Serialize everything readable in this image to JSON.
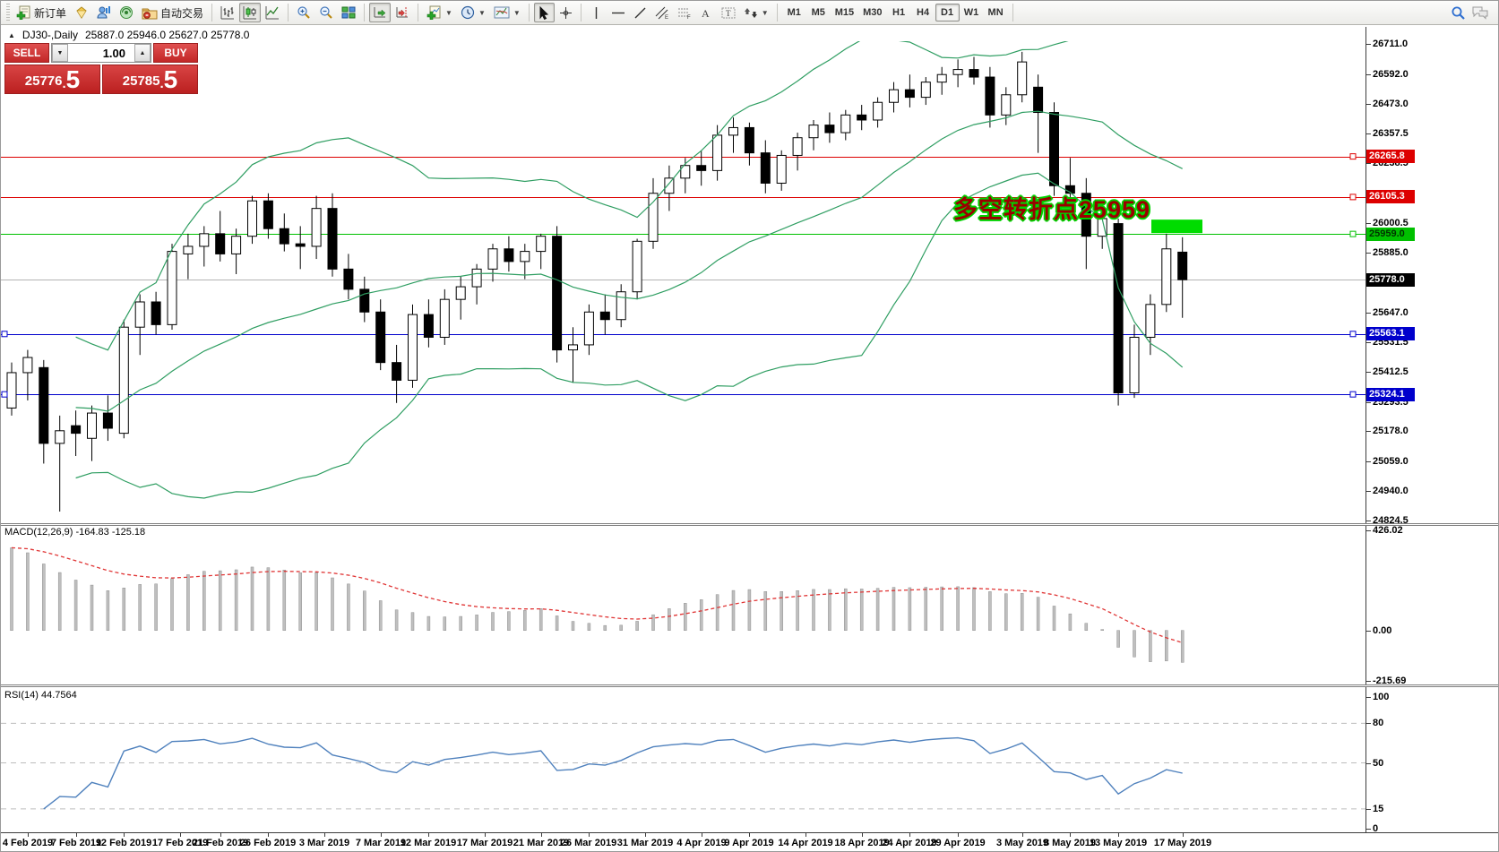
{
  "toolbar": {
    "new_order_label": "新订单",
    "auto_trading_label": "自动交易",
    "timeframes": [
      "M1",
      "M5",
      "M15",
      "M30",
      "H1",
      "H4",
      "D1",
      "W1",
      "MN"
    ],
    "active_timeframe": "D1"
  },
  "chart": {
    "collapse_marker": "▲",
    "title_symbol": "DJ30-,Daily",
    "title_ohlc": "25887.0 25946.0 25627.0 25778.0"
  },
  "trade_panel": {
    "sell_label": "SELL",
    "buy_label": "BUY",
    "volume": "1.00",
    "sell_price_main": "25776",
    "sell_price_frac": "5",
    "buy_price_main": "25785",
    "buy_price_frac": "5"
  },
  "annotation": {
    "text": "多空转折点25959"
  },
  "indicator_labels": {
    "macd": "MACD(12,26,9) -164.83 -125.18",
    "rsi": "RSI(14) 44.7564"
  },
  "colors": {
    "level_red": "#dd0000",
    "level_blue": "#0000cc",
    "level_green": "#00c000",
    "current_line": "#b4b4b4",
    "current_badge": "#000000",
    "bollinger": "#2f9e62",
    "macd_hist": "#bfbfbf",
    "macd_signal": "#e03535",
    "rsi_line": "#4f81bd",
    "highlight": "#00dc00",
    "sell_buy_red": "#c22727"
  },
  "chart_data": {
    "type": "candlestick",
    "symbol": "DJ30-",
    "period": "Daily",
    "last_ohlc": {
      "open": 25887.0,
      "high": 25946.0,
      "low": 25627.0,
      "close": 25778.0
    },
    "ylim": [
      24814,
      26722
    ],
    "y_ticks": [
      "26711.0",
      "26592.0",
      "26473.0",
      "26357.5",
      "26238.5",
      "26000.5",
      "25885.0",
      "25647.0",
      "25531.5",
      "25412.5",
      "25293.5",
      "25178.0",
      "25059.0",
      "24940.0",
      "24824.5"
    ],
    "levels": [
      {
        "price": 26265.8,
        "label": "26265.8",
        "color": "#dd0000",
        "text": "#ffffff"
      },
      {
        "price": 26105.3,
        "label": "26105.3",
        "color": "#dd0000",
        "text": "#ffffff"
      },
      {
        "price": 25959.0,
        "label": "25959.0",
        "color": "#00c000",
        "text": "#003300"
      },
      {
        "price": 25563.1,
        "label": "25563.1",
        "color": "#0000cc",
        "text": "#ffffff"
      },
      {
        "price": 25324.1,
        "label": "25324.1",
        "color": "#0000cc",
        "text": "#ffffff"
      }
    ],
    "current_price": {
      "price": 25778.0,
      "label": "25778.0"
    },
    "highlight_rect": {
      "price": 25959.0,
      "width": 57,
      "height": 15
    },
    "bollinger": {
      "period": 20,
      "deviation": 2
    },
    "ohlc": [
      [
        25270,
        25450,
        25240,
        25410
      ],
      [
        25410,
        25500,
        25300,
        25470
      ],
      [
        25430,
        25460,
        25050,
        25130
      ],
      [
        25130,
        25240,
        24860,
        25180
      ],
      [
        25200,
        25260,
        25080,
        25170
      ],
      [
        25150,
        25280,
        25060,
        25250
      ],
      [
        25250,
        25320,
        25140,
        25190
      ],
      [
        25170,
        25620,
        25150,
        25590
      ],
      [
        25590,
        25720,
        25480,
        25690
      ],
      [
        25690,
        25730,
        25560,
        25600
      ],
      [
        25600,
        25920,
        25580,
        25890
      ],
      [
        25880,
        25960,
        25780,
        25910
      ],
      [
        25910,
        25990,
        25830,
        25960
      ],
      [
        25960,
        26050,
        25850,
        25880
      ],
      [
        25880,
        25980,
        25800,
        25950
      ],
      [
        25950,
        26110,
        25920,
        26090
      ],
      [
        26090,
        26120,
        25940,
        25980
      ],
      [
        25980,
        26040,
        25890,
        25920
      ],
      [
        25920,
        25990,
        25820,
        25910
      ],
      [
        25910,
        26110,
        25860,
        26060
      ],
      [
        26060,
        26120,
        25790,
        25820
      ],
      [
        25820,
        25880,
        25700,
        25740
      ],
      [
        25740,
        25790,
        25610,
        25650
      ],
      [
        25650,
        25700,
        25420,
        25450
      ],
      [
        25450,
        25520,
        25290,
        25380
      ],
      [
        25380,
        25680,
        25350,
        25640
      ],
      [
        25640,
        25700,
        25510,
        25550
      ],
      [
        25550,
        25740,
        25520,
        25700
      ],
      [
        25700,
        25790,
        25620,
        25750
      ],
      [
        25750,
        25840,
        25680,
        25820
      ],
      [
        25820,
        25920,
        25770,
        25900
      ],
      [
        25900,
        25950,
        25810,
        25850
      ],
      [
        25850,
        25920,
        25780,
        25890
      ],
      [
        25890,
        25960,
        25820,
        25950
      ],
      [
        25950,
        25990,
        25450,
        25500
      ],
      [
        25500,
        25590,
        25370,
        25520
      ],
      [
        25520,
        25680,
        25480,
        25650
      ],
      [
        25650,
        25720,
        25560,
        25620
      ],
      [
        25620,
        25760,
        25590,
        25730
      ],
      [
        25730,
        25940,
        25700,
        25930
      ],
      [
        25930,
        26180,
        25900,
        26120
      ],
      [
        26120,
        26230,
        26050,
        26180
      ],
      [
        26180,
        26260,
        26120,
        26230
      ],
      [
        26230,
        26290,
        26150,
        26210
      ],
      [
        26210,
        26390,
        26170,
        26350
      ],
      [
        26350,
        26420,
        26280,
        26380
      ],
      [
        26380,
        26400,
        26230,
        26280
      ],
      [
        26280,
        26330,
        26120,
        26160
      ],
      [
        26160,
        26290,
        26130,
        26270
      ],
      [
        26270,
        26360,
        26210,
        26340
      ],
      [
        26340,
        26410,
        26290,
        26390
      ],
      [
        26390,
        26440,
        26320,
        26360
      ],
      [
        26360,
        26450,
        26330,
        26430
      ],
      [
        26430,
        26470,
        26370,
        26410
      ],
      [
        26410,
        26500,
        26380,
        26480
      ],
      [
        26480,
        26560,
        26440,
        26530
      ],
      [
        26530,
        26590,
        26460,
        26500
      ],
      [
        26500,
        26580,
        26470,
        26560
      ],
      [
        26560,
        26620,
        26510,
        26590
      ],
      [
        26590,
        26650,
        26540,
        26610
      ],
      [
        26610,
        26660,
        26550,
        26580
      ],
      [
        26580,
        26620,
        26380,
        26430
      ],
      [
        26430,
        26540,
        26390,
        26510
      ],
      [
        26510,
        26680,
        26480,
        26640
      ],
      [
        26540,
        26590,
        26280,
        26440
      ],
      [
        26440,
        26480,
        26110,
        26150
      ],
      [
        26150,
        26260,
        26060,
        26120
      ],
      [
        26120,
        26180,
        25820,
        25950
      ],
      [
        25950,
        26060,
        25900,
        26020
      ],
      [
        26000,
        26020,
        25280,
        25330
      ],
      [
        25330,
        25600,
        25310,
        25550
      ],
      [
        25550,
        25720,
        25480,
        25680
      ],
      [
        25680,
        25960,
        25650,
        25900
      ],
      [
        25887,
        25946,
        25627,
        25778
      ]
    ],
    "time_ticks": [
      {
        "i": 1,
        "t": "4 Feb 2019"
      },
      {
        "i": 4,
        "t": "7 Feb 2019"
      },
      {
        "i": 7,
        "t": "12 Feb 2019"
      },
      {
        "i": 10.5,
        "t": "17 Feb 2019"
      },
      {
        "i": 13,
        "t": "21 Feb 2019"
      },
      {
        "i": 16,
        "t": "26 Feb 2019"
      },
      {
        "i": 19.5,
        "t": "3 Mar 2019"
      },
      {
        "i": 23,
        "t": "7 Mar 2019"
      },
      {
        "i": 26,
        "t": "12 Mar 2019"
      },
      {
        "i": 29.5,
        "t": "17 Mar 2019"
      },
      {
        "i": 33,
        "t": "21 Mar 2019"
      },
      {
        "i": 36,
        "t": "26 Mar 2019"
      },
      {
        "i": 39.5,
        "t": "31 Mar 2019"
      },
      {
        "i": 43,
        "t": "4 Apr 2019"
      },
      {
        "i": 46,
        "t": "9 Apr 2019"
      },
      {
        "i": 49.5,
        "t": "14 Apr 2019"
      },
      {
        "i": 53,
        "t": "18 Apr 2019"
      },
      {
        "i": 56,
        "t": "24 Apr 2019"
      },
      {
        "i": 59,
        "t": "29 Apr 2019"
      },
      {
        "i": 63,
        "t": "3 May 2019"
      },
      {
        "i": 66,
        "t": "8 May 2019"
      },
      {
        "i": 69,
        "t": "13 May 2019"
      },
      {
        "i": 73,
        "t": "17 May 2019"
      }
    ],
    "macd": {
      "params": "12,26,9",
      "value": -164.83,
      "signal_value": -125.18,
      "ylim": [
        -230,
        445
      ],
      "y_ticks": [
        "426.02",
        "0.00",
        "-215.69"
      ]
    },
    "rsi": {
      "period": 14,
      "value": 44.7564,
      "y_ticks": [
        "100",
        "80",
        "50",
        "15",
        "0"
      ],
      "levels": [
        80,
        50,
        15
      ]
    }
  }
}
